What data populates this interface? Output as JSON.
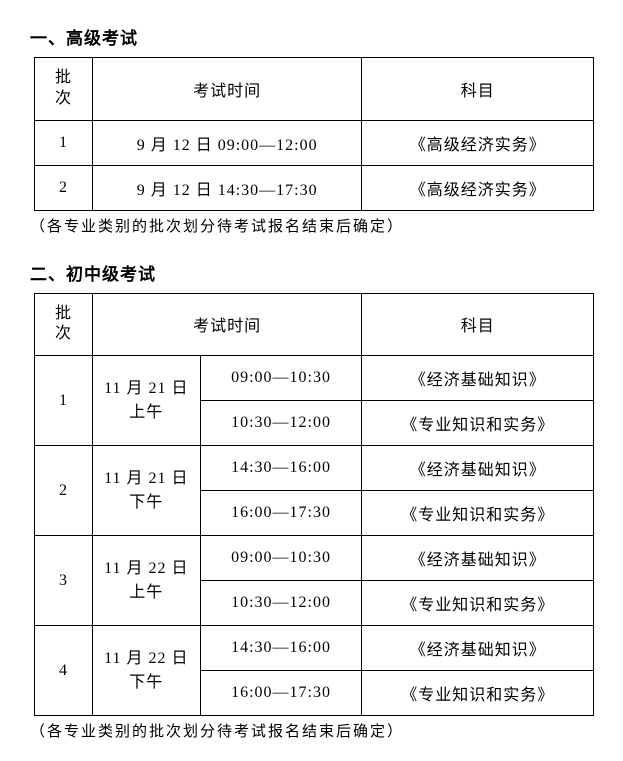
{
  "section1": {
    "title": "一、高级考试",
    "headers": {
      "batch": "批\n次",
      "time": "考试时间",
      "subject": "科目"
    },
    "rows": [
      {
        "batch": "1",
        "time": "9 月 12 日 09:00—12:00",
        "subject": "《高级经济实务》"
      },
      {
        "batch": "2",
        "time": "9 月 12 日 14:30—17:30",
        "subject": "《高级经济实务》"
      }
    ],
    "note": "（各专业类别的批次划分待考试报名结束后确定）"
  },
  "section2": {
    "title": "二、初中级考试",
    "headers": {
      "batch": "批\n次",
      "time": "考试时间",
      "subject": "科目"
    },
    "rows": [
      {
        "batch": "1",
        "date": "11 月 21 日\n上午",
        "slots": [
          {
            "time": "09:00—10:30",
            "subject": "《经济基础知识》"
          },
          {
            "time": "10:30—12:00",
            "subject": "《专业知识和实务》"
          }
        ]
      },
      {
        "batch": "2",
        "date": "11 月 21 日\n下午",
        "slots": [
          {
            "time": "14:30—16:00",
            "subject": "《经济基础知识》"
          },
          {
            "time": "16:00—17:30",
            "subject": "《专业知识和实务》"
          }
        ]
      },
      {
        "batch": "3",
        "date": "11 月 22 日\n上午",
        "slots": [
          {
            "time": "09:00—10:30",
            "subject": "《经济基础知识》"
          },
          {
            "time": "10:30—12:00",
            "subject": "《专业知识和实务》"
          }
        ]
      },
      {
        "batch": "4",
        "date": "11 月 22 日\n下午",
        "slots": [
          {
            "time": "14:30—16:00",
            "subject": "《经济基础知识》"
          },
          {
            "time": "16:00—17:30",
            "subject": "《专业知识和实务》"
          }
        ]
      }
    ],
    "note": "（各专业类别的批次划分待考试报名结束后确定）"
  }
}
